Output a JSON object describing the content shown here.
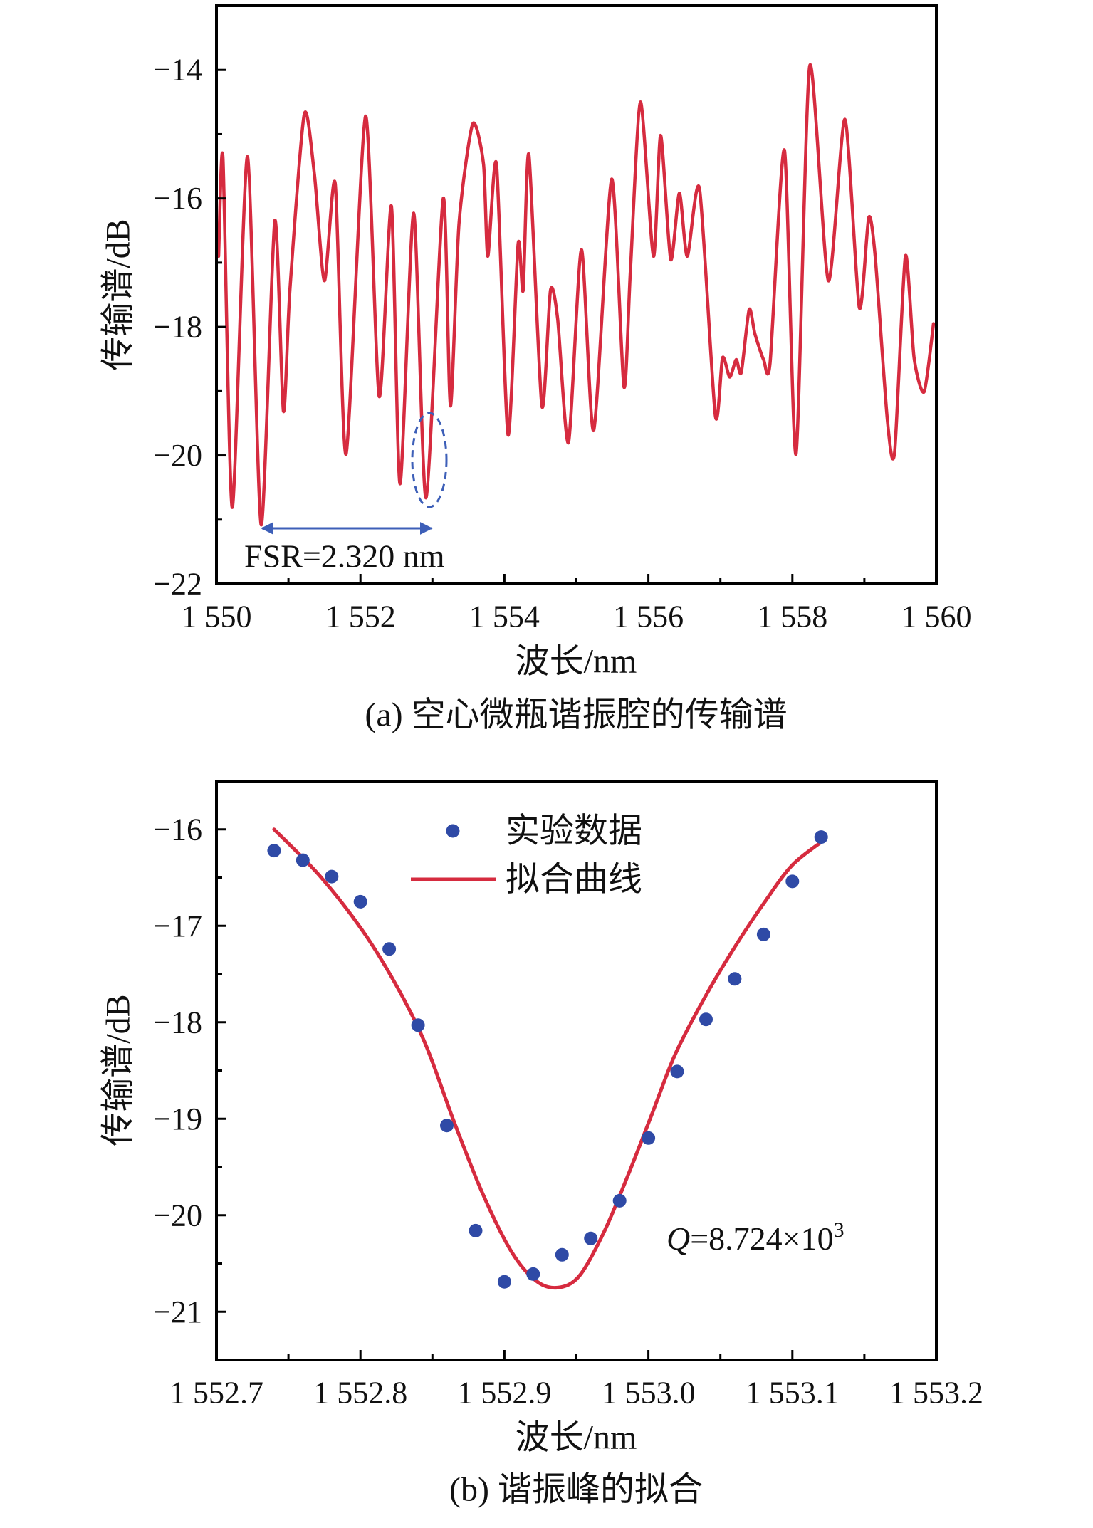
{
  "chart_data": [
    {
      "type": "line",
      "caption": "(a) 空心微瓶谐振腔的传输谱",
      "xlabel": "波长/nm",
      "ylabel": "传输谱/dB",
      "xlim": [
        1550,
        1560
      ],
      "ylim": [
        -22,
        -13
      ],
      "grid": false,
      "xticks": [
        {
          "value": 1550,
          "label": "1 550"
        },
        {
          "value": 1552,
          "label": "1 552"
        },
        {
          "value": 1554,
          "label": "1 554"
        },
        {
          "value": 1556,
          "label": "1 556"
        },
        {
          "value": 1558,
          "label": "1 558"
        },
        {
          "value": 1560,
          "label": "1 560"
        }
      ],
      "x_minor_ticks": [
        1551,
        1553,
        1555,
        1557,
        1559
      ],
      "yticks": [
        {
          "value": -14,
          "label": "−14"
        },
        {
          "value": -16,
          "label": "−16"
        },
        {
          "value": -18,
          "label": "−18"
        },
        {
          "value": -20,
          "label": "−20"
        },
        {
          "value": -22,
          "label": "−22"
        }
      ],
      "y_minor_ticks": [
        -15,
        -17,
        -19,
        -21
      ],
      "series": [
        {
          "kind": "line",
          "color": "#d62b3f",
          "x": [
            1550.03,
            1550.09,
            1550.22,
            1550.43,
            1550.62,
            1550.81,
            1550.93,
            1551.02,
            1551.22,
            1551.36,
            1551.5,
            1551.65,
            1551.8,
            1552.07,
            1552.26,
            1552.43,
            1552.55,
            1552.74,
            1552.91,
            1553.15,
            1553.25,
            1553.37,
            1553.56,
            1553.71,
            1553.77,
            1553.89,
            1554.05,
            1554.19,
            1554.26,
            1554.34,
            1554.52,
            1554.64,
            1554.74,
            1554.89,
            1555.07,
            1555.24,
            1555.49,
            1555.66,
            1555.75,
            1555.89,
            1556.07,
            1556.17,
            1556.31,
            1556.43,
            1556.54,
            1556.71,
            1556.93,
            1557.03,
            1557.13,
            1557.22,
            1557.29,
            1557.4,
            1557.48,
            1557.6,
            1557.69,
            1557.89,
            1558.05,
            1558.24,
            1558.5,
            1558.73,
            1558.93,
            1559.06,
            1559.15,
            1559.32,
            1559.42,
            1559.57,
            1559.69,
            1559.83,
            1559.96
          ],
          "y": [
            -16.9,
            -15.37,
            -20.81,
            -15.35,
            -21.08,
            -16.35,
            -19.31,
            -17.43,
            -14.69,
            -15.62,
            -17.28,
            -15.77,
            -19.98,
            -14.72,
            -19.08,
            -16.12,
            -20.44,
            -16.23,
            -20.66,
            -16.0,
            -19.23,
            -16.38,
            -14.84,
            -15.47,
            -16.9,
            -15.47,
            -19.68,
            -16.71,
            -17.43,
            -15.32,
            -19.23,
            -17.43,
            -17.88,
            -19.8,
            -16.8,
            -19.61,
            -15.7,
            -18.93,
            -17.13,
            -14.5,
            -16.9,
            -15.02,
            -16.95,
            -15.92,
            -16.9,
            -15.85,
            -19.38,
            -18.48,
            -18.78,
            -18.51,
            -18.71,
            -17.73,
            -18.11,
            -18.51,
            -18.56,
            -15.25,
            -19.98,
            -13.94,
            -17.28,
            -14.77,
            -17.7,
            -16.3,
            -16.9,
            -19.46,
            -19.95,
            -16.9,
            -18.48,
            -19.01,
            -17.95
          ]
        }
      ],
      "annotation": {
        "text": "FSR=2.320 nm",
        "color": "#3d5fb8"
      }
    },
    {
      "type": "scatter",
      "caption": "(b) 谐振峰的拟合",
      "xlabel": "波长/nm",
      "ylabel": "传输谱/dB",
      "xlim": [
        1552.7,
        1553.2
      ],
      "ylim": [
        -21.5,
        -15.5
      ],
      "grid": false,
      "legend": "top-center",
      "xticks": [
        {
          "value": 1552.7,
          "label": "1 552.7"
        },
        {
          "value": 1552.8,
          "label": "1 552.8"
        },
        {
          "value": 1552.9,
          "label": "1 552.9"
        },
        {
          "value": 1553.0,
          "label": "1 553.0"
        },
        {
          "value": 1553.1,
          "label": "1 553.1"
        },
        {
          "value": 1553.2,
          "label": "1 553.2"
        }
      ],
      "x_minor_ticks": [
        1552.75,
        1552.85,
        1552.95,
        1553.05,
        1553.15
      ],
      "yticks": [
        {
          "value": -16,
          "label": "−16"
        },
        {
          "value": -17,
          "label": "−17"
        },
        {
          "value": -18,
          "label": "−18"
        },
        {
          "value": -19,
          "label": "−19"
        },
        {
          "value": -20,
          "label": "−20"
        },
        {
          "value": -21,
          "label": "−21"
        }
      ],
      "y_minor_ticks": [
        -16.5,
        -17.5,
        -18.5,
        -19.5,
        -20.5
      ],
      "series": [
        {
          "name": "实验数据",
          "kind": "scatter",
          "color": "#2f4aa6",
          "x": [
            1552.74,
            1552.76,
            1552.78,
            1552.8,
            1552.82,
            1552.84,
            1552.86,
            1552.88,
            1552.9,
            1552.92,
            1552.94,
            1552.96,
            1552.98,
            1553.0,
            1553.02,
            1553.04,
            1553.06,
            1553.08,
            1553.1,
            1553.12
          ],
          "y": [
            -16.22,
            -16.32,
            -16.49,
            -16.75,
            -17.24,
            -18.03,
            -19.07,
            -20.16,
            -20.69,
            -20.61,
            -20.41,
            -20.24,
            -19.85,
            -19.2,
            -18.51,
            -17.97,
            -17.55,
            -17.09,
            -16.54,
            -16.08
          ]
        },
        {
          "name": "拟合曲线",
          "kind": "line",
          "color": "#d62b3f",
          "x": [
            1552.74,
            1552.771,
            1552.801,
            1552.825,
            1552.845,
            1552.865,
            1552.885,
            1552.905,
            1552.922,
            1552.937,
            1552.952,
            1552.969,
            1552.986,
            1553.003,
            1553.019,
            1553.04,
            1553.06,
            1553.08,
            1553.1,
            1553.123
          ],
          "y": [
            -16.0,
            -16.47,
            -17.04,
            -17.62,
            -18.22,
            -19.03,
            -19.78,
            -20.38,
            -20.68,
            -20.75,
            -20.63,
            -20.18,
            -19.58,
            -18.93,
            -18.32,
            -17.72,
            -17.22,
            -16.77,
            -16.37,
            -16.1
          ]
        }
      ],
      "annotation": {
        "symbol": "Q",
        "mantissa": "=8.724×10",
        "exponent": "3"
      }
    }
  ]
}
